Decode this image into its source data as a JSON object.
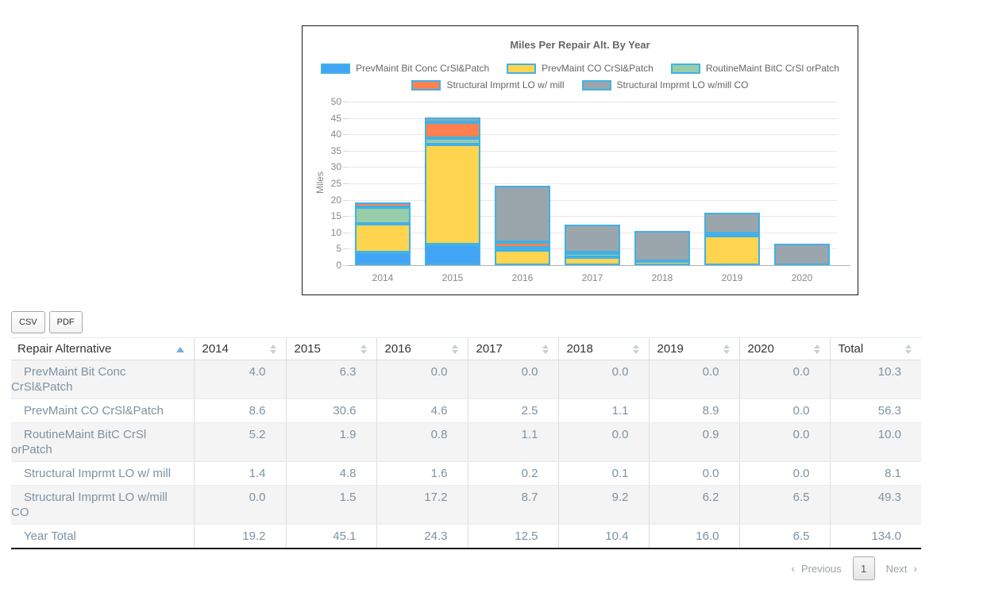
{
  "chart_data": {
    "type": "bar",
    "stacked": true,
    "title": "Miles Per Repair Alt. By Year",
    "ylabel": "Miles",
    "xlabel": "",
    "ylim": [
      0,
      50
    ],
    "y_step": 5,
    "grid": true,
    "legend_position": "top",
    "bar_border_color": "#41b1e6",
    "categories": [
      "2014",
      "2015",
      "2016",
      "2017",
      "2018",
      "2019",
      "2020"
    ],
    "series": [
      {
        "name": "PrevMaint Bit Conc CrSl&Patch",
        "color": "#42a4f5",
        "values": [
          4.0,
          6.3,
          0.0,
          0.0,
          0.0,
          0.0,
          0.0
        ]
      },
      {
        "name": "PrevMaint CO CrSl&Patch",
        "color": "#ffd44f",
        "values": [
          8.6,
          30.6,
          4.6,
          2.5,
          1.1,
          8.9,
          0.0
        ]
      },
      {
        "name": "RoutineMaint BitC CrSl orPatch",
        "color": "#97cda9",
        "values": [
          5.2,
          1.9,
          0.8,
          1.1,
          0.0,
          0.9,
          0.0
        ]
      },
      {
        "name": "Structural Imprmt LO w/ mill",
        "color": "#ff8150",
        "values": [
          1.4,
          4.8,
          1.6,
          0.2,
          0.1,
          0.0,
          0.0
        ]
      },
      {
        "name": "Structural Imprmt LO w/mill CO",
        "color": "#9ba6ac",
        "values": [
          0.0,
          1.5,
          17.2,
          8.7,
          9.2,
          6.2,
          6.5
        ]
      }
    ]
  },
  "toolbar": {
    "csv_label": "CSV",
    "pdf_label": "PDF"
  },
  "table": {
    "columns": [
      "Repair Alternative",
      "2014",
      "2015",
      "2016",
      "2017",
      "2018",
      "2019",
      "2020",
      "Total"
    ],
    "sorted_column": "Repair Alternative",
    "sort_direction": "ascending",
    "rows": [
      {
        "label": "PrevMaint Bit Conc CrSl&Patch",
        "values": [
          "4.0",
          "6.3",
          "0.0",
          "0.0",
          "0.0",
          "0.0",
          "0.0",
          "10.3"
        ]
      },
      {
        "label": "PrevMaint CO CrSl&Patch",
        "values": [
          "8.6",
          "30.6",
          "4.6",
          "2.5",
          "1.1",
          "8.9",
          "0.0",
          "56.3"
        ]
      },
      {
        "label": "RoutineMaint BitC CrSl orPatch",
        "values": [
          "5.2",
          "1.9",
          "0.8",
          "1.1",
          "0.0",
          "0.9",
          "0.0",
          "10.0"
        ]
      },
      {
        "label": "Structural Imprmt LO w/ mill",
        "values": [
          "1.4",
          "4.8",
          "1.6",
          "0.2",
          "0.1",
          "0.0",
          "0.0",
          "8.1"
        ]
      },
      {
        "label": "Structural Imprmt LO w/mill CO",
        "values": [
          "0.0",
          "1.5",
          "17.2",
          "8.7",
          "9.2",
          "6.2",
          "6.5",
          "49.3"
        ]
      },
      {
        "label": "Year Total",
        "values": [
          "19.2",
          "45.1",
          "24.3",
          "12.5",
          "10.4",
          "16.0",
          "6.5",
          "134.0"
        ]
      }
    ]
  },
  "pagination": {
    "previous_label": "Previous",
    "prev_icon": "‹",
    "page": "1",
    "next_label": "Next",
    "next_icon": "›"
  }
}
